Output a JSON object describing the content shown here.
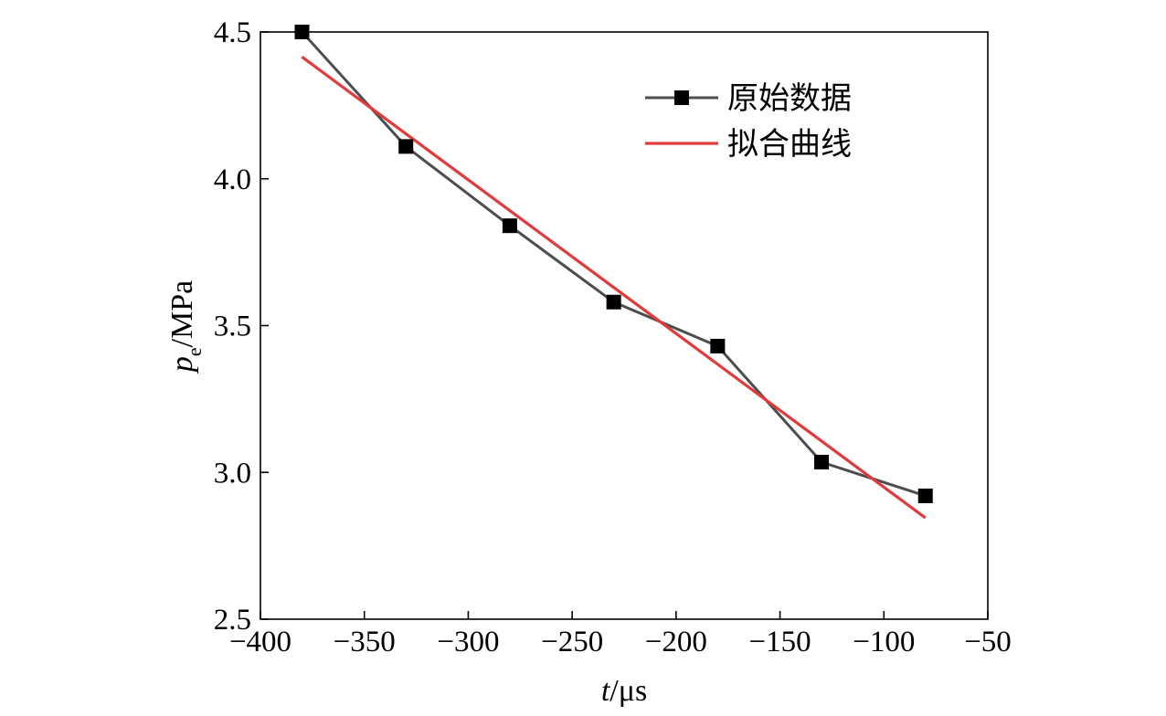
{
  "chart_data": {
    "type": "line",
    "title": "",
    "xlabel": {
      "symbol": "t",
      "unit": "/μs"
    },
    "ylabel": {
      "symbol": "p",
      "subscript": "e",
      "unit": "/MPa"
    },
    "xlim": [
      -400,
      -50
    ],
    "ylim": [
      2.5,
      4.5
    ],
    "x_ticks": [
      -400,
      -350,
      -300,
      -250,
      -200,
      -150,
      -100,
      -50
    ],
    "x_tick_labels": [
      "−400",
      "−350",
      "−300",
      "−250",
      "−200",
      "−150",
      "−100",
      "−50"
    ],
    "y_ticks": [
      2.5,
      3.0,
      3.5,
      4.0,
      4.5
    ],
    "y_tick_labels": [
      "2.5",
      "3.0",
      "3.5",
      "4.0",
      "4.5"
    ],
    "grid": false,
    "legend_position": "top-right",
    "series": [
      {
        "name": "原始数据",
        "style": "line-square-markers",
        "color": "#4d4d4d",
        "marker_color": "#000000",
        "x": [
          -380,
          -330,
          -280,
          -230,
          -180,
          -130,
          -80
        ],
        "y": [
          4.5,
          4.11,
          3.84,
          3.58,
          3.43,
          3.035,
          2.92
        ]
      },
      {
        "name": "拟合曲线",
        "style": "line",
        "color": "#e03a3a",
        "x": [
          -380,
          -80
        ],
        "y": [
          4.415,
          2.845
        ]
      }
    ]
  }
}
